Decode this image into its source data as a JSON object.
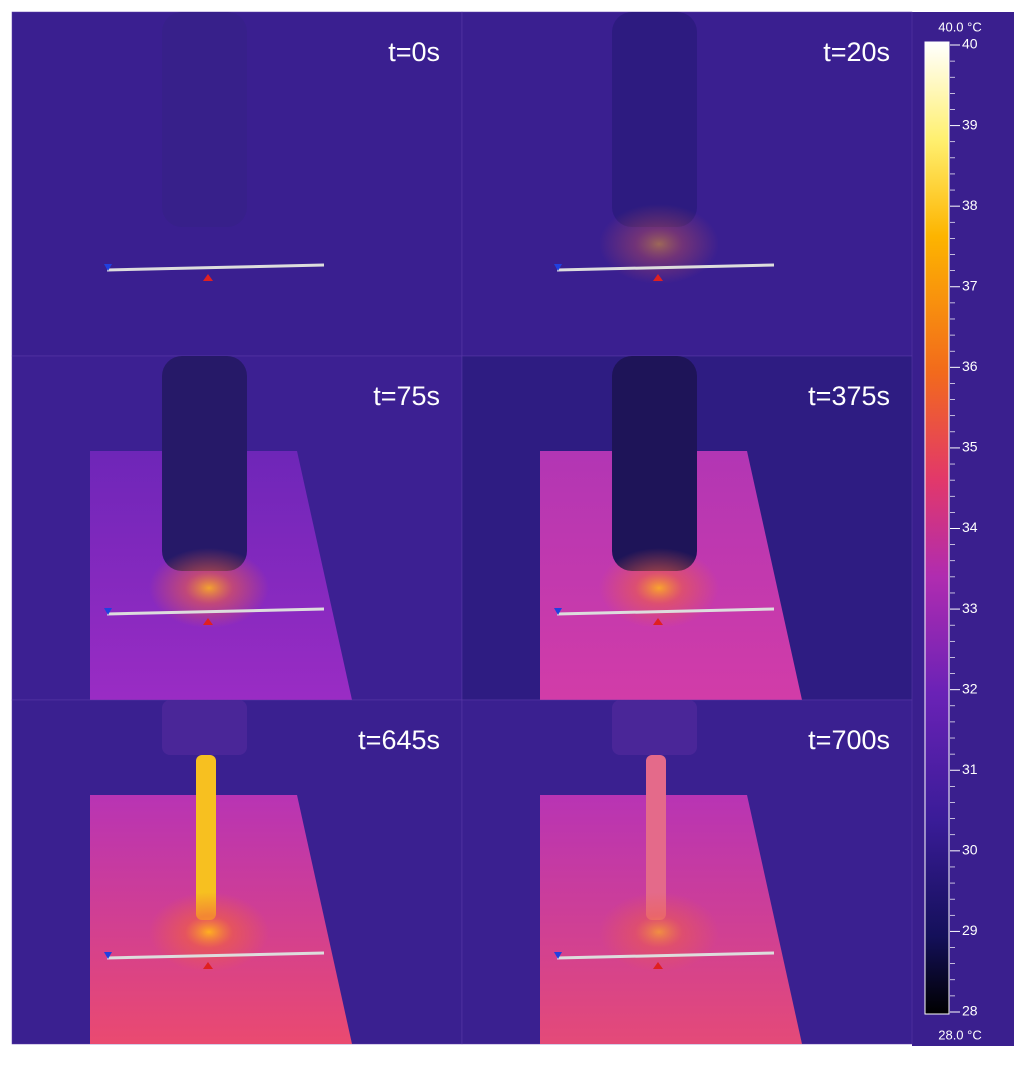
{
  "panels": [
    {
      "label": "t=0s"
    },
    {
      "label": "t=20s"
    },
    {
      "label": "t=75s"
    },
    {
      "label": "t=375s"
    },
    {
      "label": "t=645s"
    },
    {
      "label": "t=700s"
    }
  ],
  "colorbar": {
    "top_label": "40.0 °C",
    "bottom_label": "28.0 °C",
    "lim": [
      28,
      40
    ],
    "ticks": [
      28,
      29,
      30,
      31,
      32,
      33,
      34,
      35,
      36,
      37,
      38,
      39,
      40
    ]
  }
}
